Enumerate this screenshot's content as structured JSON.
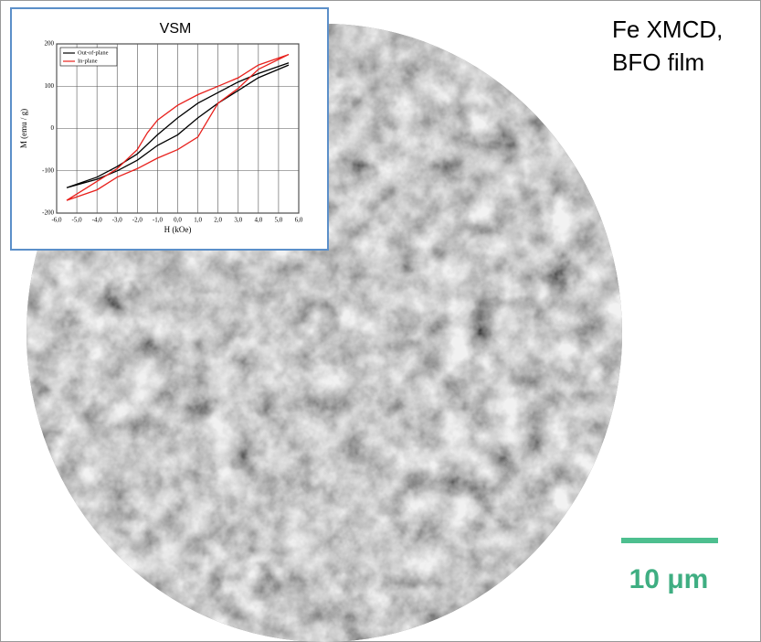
{
  "figure": {
    "title_lines": [
      "Fe XMCD,",
      "BFO film"
    ],
    "scale_bar": "10 μm"
  },
  "chart_data": {
    "type": "line",
    "title": "VSM",
    "x_label": "H (kOe)",
    "y_label": "M (emu / g)",
    "xlim": [
      -6,
      6
    ],
    "xticks": [
      {
        "value": -6,
        "label": "-6,0"
      },
      {
        "value": -5,
        "label": "-5,0"
      },
      {
        "value": -4,
        "label": "-4,0"
      },
      {
        "value": -3,
        "label": "-3,0"
      },
      {
        "value": -2,
        "label": "-2,0"
      },
      {
        "value": -1,
        "label": "-1,0"
      },
      {
        "value": 0,
        "label": "0,0"
      },
      {
        "value": 1,
        "label": "1,0"
      },
      {
        "value": 2,
        "label": "2,0"
      },
      {
        "value": 3,
        "label": "3,0"
      },
      {
        "value": 4,
        "label": "4,0"
      },
      {
        "value": 5,
        "label": "5,0"
      },
      {
        "value": 6,
        "label": "6,0"
      }
    ],
    "ylim": [
      -200,
      200
    ],
    "yticks": [
      -200,
      -100,
      0,
      100,
      200
    ],
    "grid": true,
    "legend": "top-left",
    "series": [
      {
        "name": "Out-of-plane",
        "color": "#000000",
        "x": [
          5.5,
          4,
          3,
          2,
          1,
          0,
          -1,
          -2,
          -3,
          -4,
          -5.5,
          -4,
          -3,
          -2,
          -1,
          0,
          1,
          2,
          3,
          4,
          5.5
        ],
        "values": [
          155,
          130,
          110,
          85,
          60,
          25,
          -15,
          -60,
          -90,
          -115,
          -140,
          -120,
          -100,
          -75,
          -40,
          -15,
          25,
          60,
          90,
          120,
          150
        ]
      },
      {
        "name": "In-plane",
        "color": "#e8201c",
        "x": [
          5.5,
          4,
          3,
          2,
          1,
          0,
          -1,
          -1.5,
          -2,
          -3,
          -4,
          -5.5,
          -4,
          -3,
          -2,
          -1,
          0,
          1,
          1.5,
          2,
          3,
          4,
          5.5
        ],
        "values": [
          175,
          150,
          120,
          100,
          80,
          55,
          20,
          -10,
          -50,
          -95,
          -125,
          -170,
          -145,
          -115,
          -95,
          -70,
          -50,
          -20,
          20,
          60,
          95,
          140,
          175
        ]
      }
    ]
  }
}
